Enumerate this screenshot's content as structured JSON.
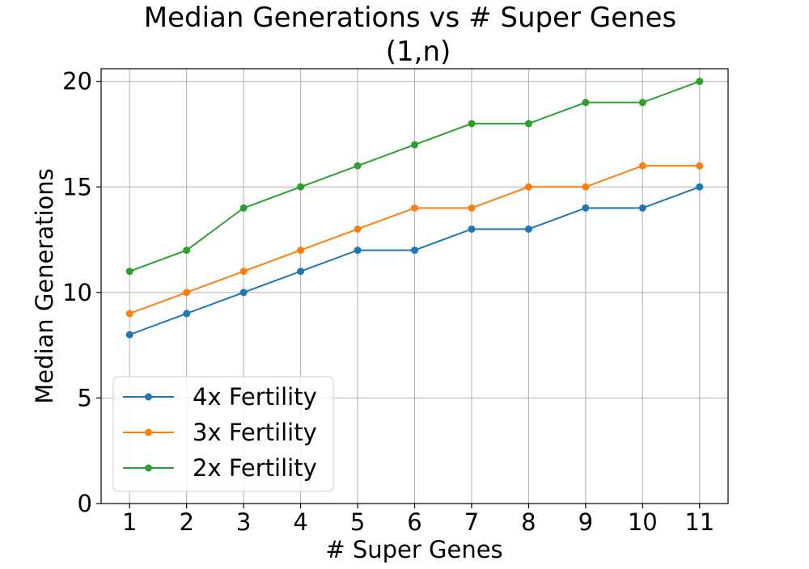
{
  "chart_data": {
    "type": "line",
    "title": "Median Generations vs # Super Genes",
    "subtitle": "(1,n)",
    "xlabel": "# Super Genes",
    "ylabel": "Median Generations",
    "x": [
      1,
      2,
      3,
      4,
      5,
      6,
      7,
      8,
      9,
      10,
      11
    ],
    "x_ticks": [
      "1",
      "2",
      "3",
      "4",
      "5",
      "6",
      "7",
      "8",
      "9",
      "10",
      "11"
    ],
    "y_ticks": [
      "0",
      "5",
      "10",
      "15",
      "20"
    ],
    "xlim": [
      0.5,
      11.5
    ],
    "ylim": [
      0,
      20.6
    ],
    "grid": true,
    "legend_position": "lower-left",
    "series": [
      {
        "name": "4x Fertility",
        "color": "#1f77b4",
        "values": [
          8,
          9,
          10,
          11,
          12,
          12,
          13,
          13,
          14,
          14,
          15
        ]
      },
      {
        "name": "3x Fertility",
        "color": "#ff7f0e",
        "values": [
          9,
          10,
          11,
          12,
          13,
          14,
          14,
          15,
          15,
          16,
          16
        ]
      },
      {
        "name": "2x Fertility",
        "color": "#2ca02c",
        "values": [
          11,
          12,
          14,
          15,
          16,
          17,
          18,
          18,
          19,
          19,
          20
        ]
      }
    ]
  }
}
